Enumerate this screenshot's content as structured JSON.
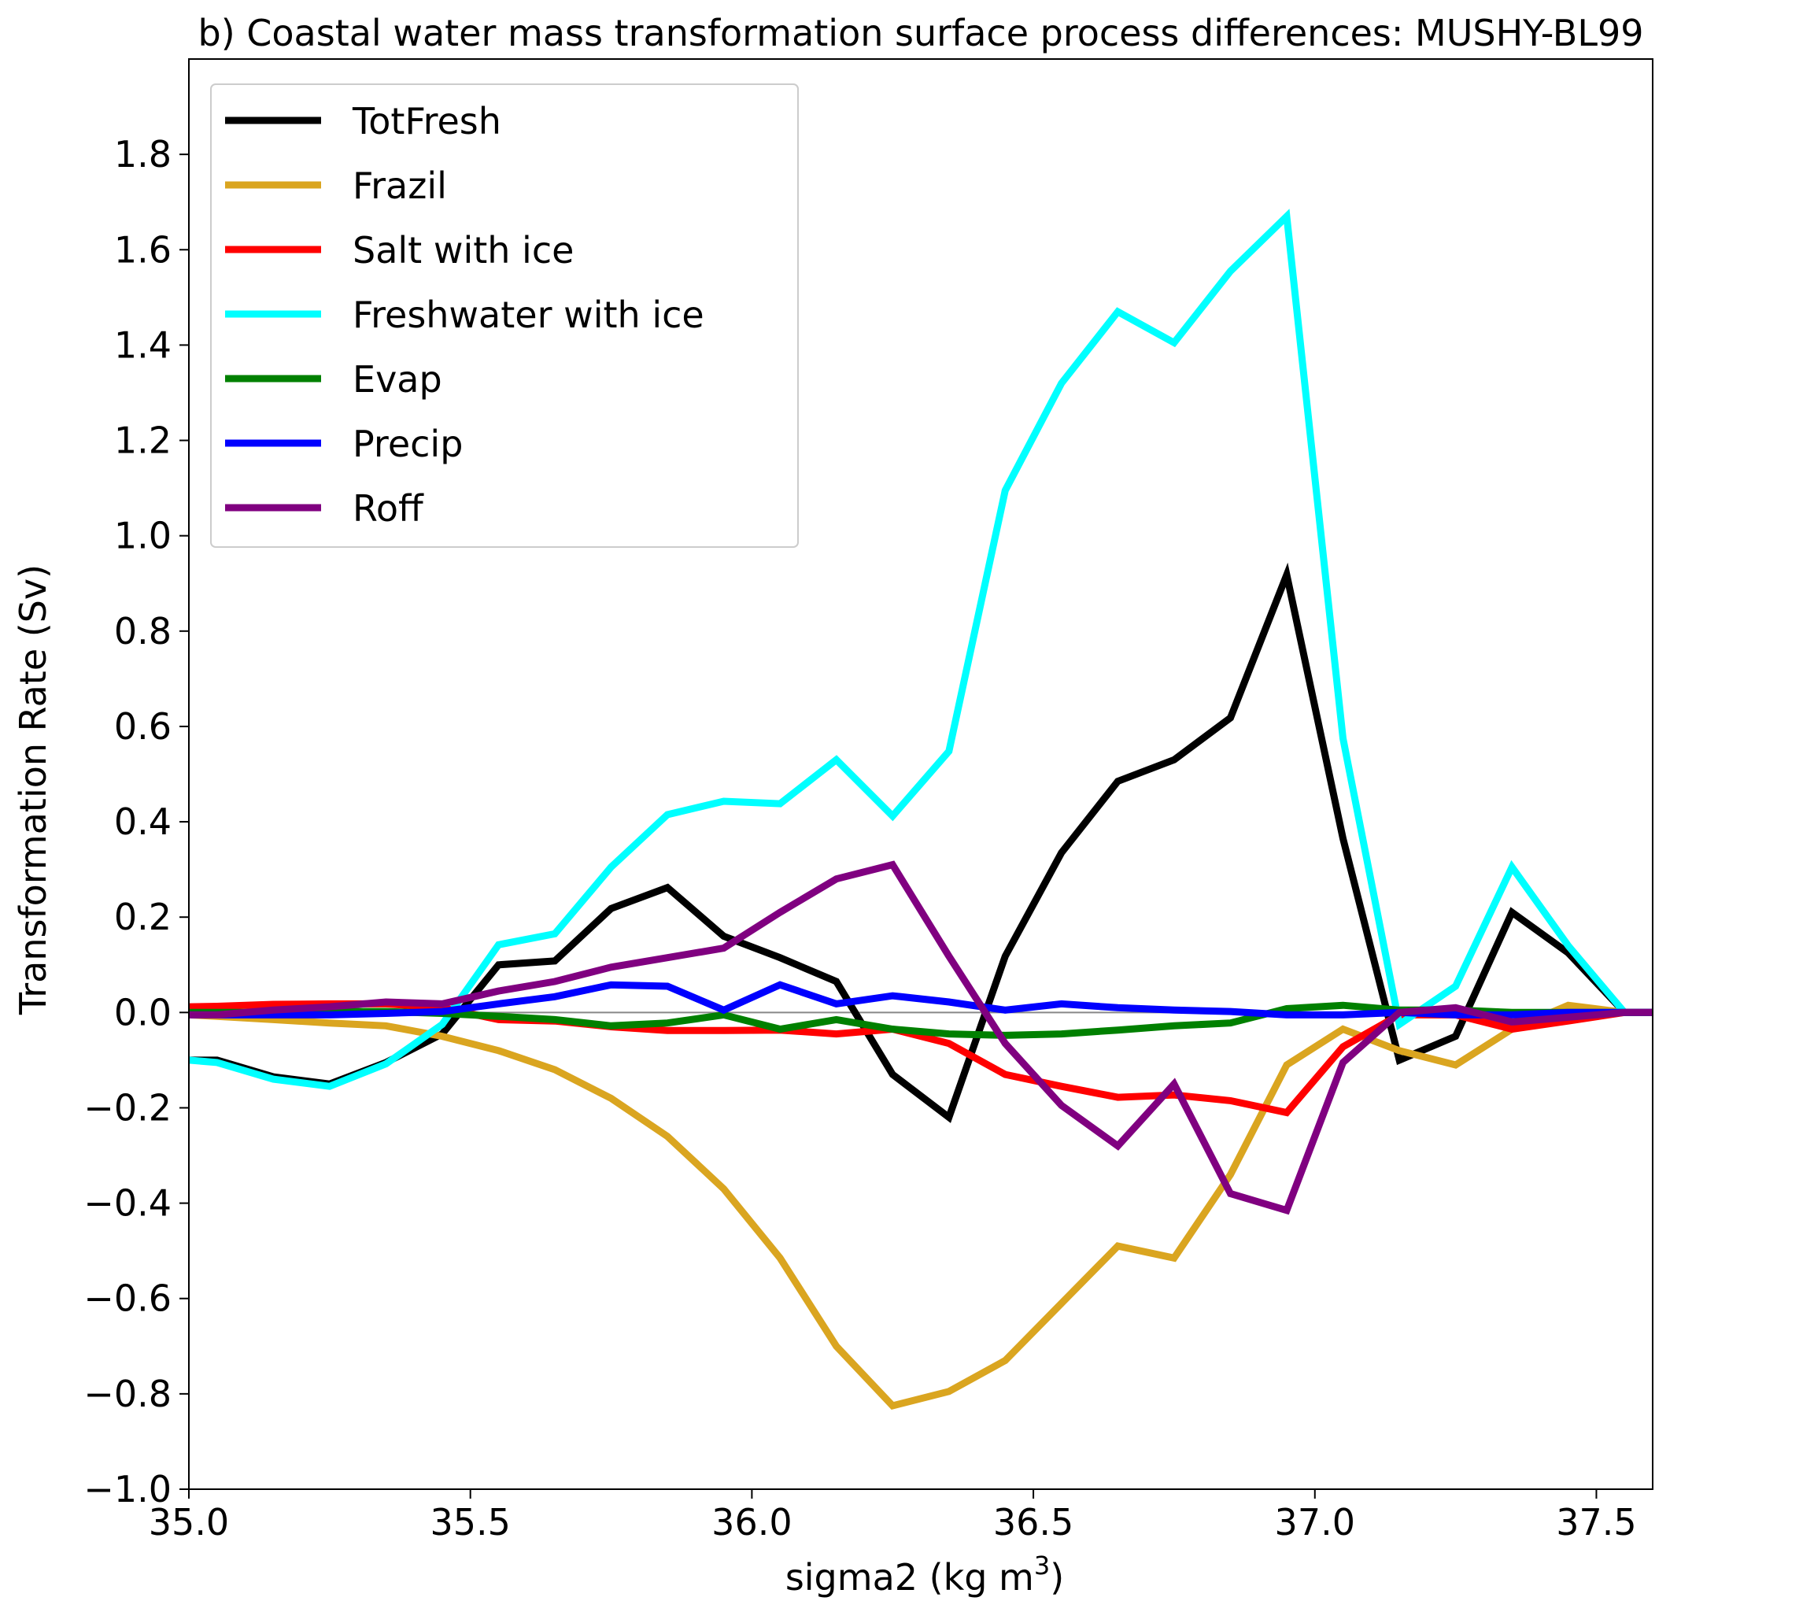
{
  "chart_data": {
    "type": "line",
    "title": "b) Coastal water mass transformation surface process differences: MUSHY-BL99",
    "xlabel": "sigma2 (kg m",
    "xlabel_sup": "3",
    "xlabel_close": ")",
    "ylabel": "Transformation Rate (Sv)",
    "xlim": [
      35.0,
      37.6
    ],
    "ylim": [
      -1.0,
      2.0
    ],
    "x_ticks": [
      35.0,
      35.5,
      36.0,
      36.5,
      37.0,
      37.5
    ],
    "x_tick_labels": [
      "35.0",
      "35.5",
      "36.0",
      "36.5",
      "37.0",
      "37.5"
    ],
    "y_ticks": [
      -1.0,
      -0.8,
      -0.6,
      -0.4,
      -0.2,
      0.0,
      0.2,
      0.4,
      0.6,
      0.8,
      1.0,
      1.2,
      1.4,
      1.6,
      1.8
    ],
    "y_tick_labels": [
      "−1.0",
      "−0.8",
      "−0.6",
      "−0.4",
      "−0.2",
      "0.0",
      "0.2",
      "0.4",
      "0.6",
      "0.8",
      "1.0",
      "1.2",
      "1.4",
      "1.6",
      "1.8"
    ],
    "zero_line": true,
    "grid": false,
    "legend_position": "upper-left",
    "x": [
      35.0,
      35.05,
      35.15,
      35.25,
      35.35,
      35.45,
      35.55,
      35.65,
      35.75,
      35.85,
      35.95,
      36.05,
      36.15,
      36.25,
      36.35,
      36.45,
      36.55,
      36.65,
      36.75,
      36.85,
      36.95,
      37.05,
      37.15,
      37.25,
      37.35,
      37.45,
      37.55,
      37.6
    ],
    "series": [
      {
        "name": "TotFresh",
        "color": "#000000",
        "values": [
          -0.1,
          -0.1,
          -0.135,
          -0.15,
          -0.105,
          -0.045,
          0.1,
          0.108,
          0.218,
          0.262,
          0.16,
          0.115,
          0.065,
          -0.13,
          -0.22,
          0.118,
          0.335,
          0.485,
          0.53,
          0.618,
          0.918,
          0.365,
          -0.1,
          -0.05,
          0.21,
          0.125,
          0.0,
          0.0
        ]
      },
      {
        "name": "Frazil",
        "color": "#daa520",
        "values": [
          -0.005,
          -0.008,
          -0.015,
          -0.022,
          -0.028,
          -0.05,
          -0.08,
          -0.12,
          -0.18,
          -0.26,
          -0.37,
          -0.515,
          -0.7,
          -0.825,
          -0.795,
          -0.73,
          -0.61,
          -0.49,
          -0.515,
          -0.34,
          -0.11,
          -0.035,
          -0.08,
          -0.11,
          -0.035,
          0.015,
          0.0,
          0.0
        ]
      },
      {
        "name": "Salt with ice",
        "color": "#ff0000",
        "values": [
          0.012,
          0.013,
          0.017,
          0.018,
          0.018,
          0.01,
          -0.015,
          -0.018,
          -0.03,
          -0.038,
          -0.038,
          -0.037,
          -0.045,
          -0.035,
          -0.065,
          -0.13,
          -0.155,
          -0.178,
          -0.173,
          -0.185,
          -0.21,
          -0.072,
          -0.005,
          -0.005,
          -0.035,
          -0.018,
          0.0,
          0.0
        ]
      },
      {
        "name": "Freshwater with ice",
        "color": "#00ffff",
        "values": [
          -0.1,
          -0.105,
          -0.14,
          -0.155,
          -0.108,
          -0.025,
          0.142,
          0.165,
          0.305,
          0.415,
          0.443,
          0.438,
          0.53,
          0.412,
          0.548,
          1.095,
          1.32,
          1.47,
          1.405,
          1.555,
          1.67,
          0.575,
          -0.025,
          0.055,
          0.305,
          0.14,
          0.0,
          0.0
        ]
      },
      {
        "name": "Evap",
        "color": "#008000",
        "values": [
          0.0,
          0.0,
          0.0,
          0.002,
          0.002,
          -0.002,
          -0.008,
          -0.015,
          -0.028,
          -0.022,
          -0.005,
          -0.035,
          -0.015,
          -0.035,
          -0.045,
          -0.048,
          -0.045,
          -0.037,
          -0.028,
          -0.022,
          0.008,
          0.015,
          0.005,
          0.005,
          0.0,
          0.0,
          0.0,
          0.0
        ]
      },
      {
        "name": "Precip",
        "color": "#0000ff",
        "values": [
          -0.005,
          -0.005,
          -0.005,
          -0.005,
          -0.002,
          0.002,
          0.018,
          0.033,
          0.058,
          0.055,
          0.005,
          0.058,
          0.018,
          0.035,
          0.022,
          0.005,
          0.018,
          0.01,
          0.005,
          0.002,
          -0.005,
          -0.005,
          0.0,
          -0.005,
          -0.005,
          0.0,
          0.0,
          0.0
        ]
      },
      {
        "name": "Roff",
        "color": "#800080",
        "values": [
          -0.005,
          -0.005,
          0.005,
          0.012,
          0.022,
          0.018,
          0.045,
          0.065,
          0.095,
          0.115,
          0.135,
          0.21,
          0.28,
          0.31,
          0.118,
          -0.065,
          -0.195,
          -0.28,
          -0.15,
          -0.38,
          -0.415,
          -0.105,
          0.0,
          0.01,
          -0.02,
          -0.01,
          0.0,
          0.0
        ]
      }
    ]
  }
}
